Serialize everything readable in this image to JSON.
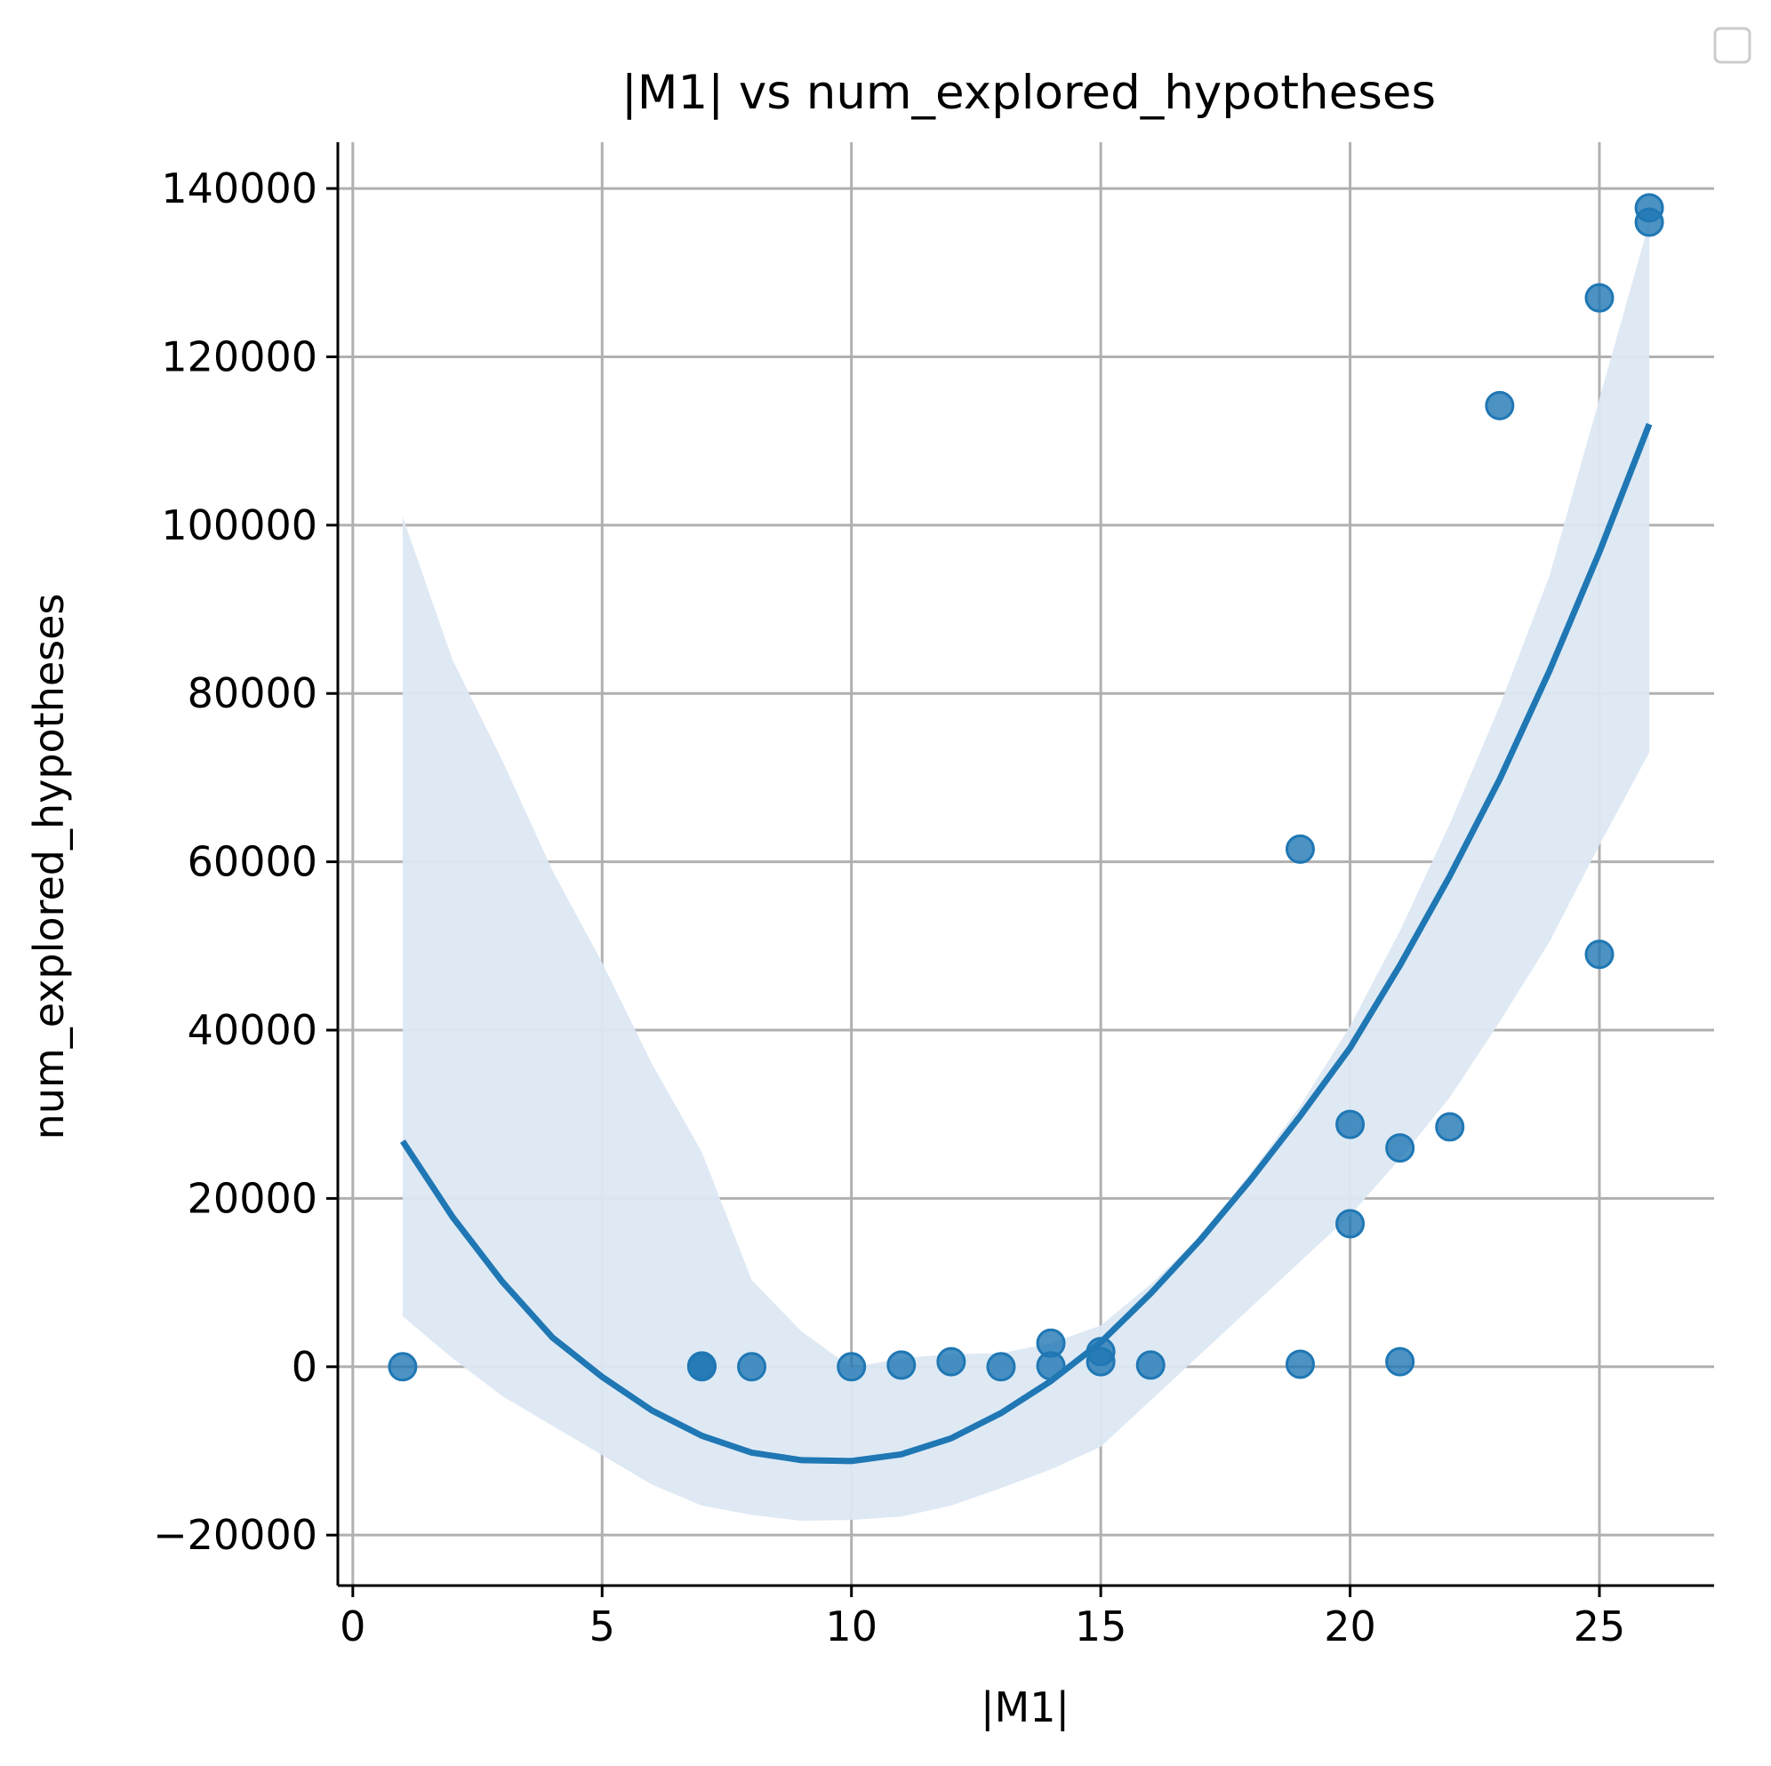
{
  "chart_data": {
    "type": "scatter",
    "title": "|M1| vs num_explored_hypotheses",
    "xlabel": "|M1|",
    "ylabel": "num_explored_hypotheses",
    "xlim": [
      -0.3,
      27.3
    ],
    "ylim": [
      -26000,
      145500
    ],
    "xticks": [
      0,
      5,
      10,
      15,
      20,
      25
    ],
    "yticks": [
      -20000,
      0,
      20000,
      40000,
      60000,
      80000,
      100000,
      120000,
      140000
    ],
    "ytick_labels": [
      "−20000",
      "0",
      "20000",
      "40000",
      "60000",
      "80000",
      "100000",
      "120000",
      "140000"
    ],
    "grid": true,
    "legend": "top-right, empty",
    "colors": {
      "points": "#1f77b4",
      "fit_line": "#1f77b4",
      "band": "#dce8f3",
      "grid": "#b0b0b0"
    },
    "points": [
      {
        "x": 1,
        "y": 0
      },
      {
        "x": 7,
        "y": 0
      },
      {
        "x": 7,
        "y": 100
      },
      {
        "x": 8,
        "y": 0
      },
      {
        "x": 10,
        "y": 0
      },
      {
        "x": 11,
        "y": 200
      },
      {
        "x": 12,
        "y": 600
      },
      {
        "x": 13,
        "y": 0
      },
      {
        "x": 14,
        "y": 2800
      },
      {
        "x": 14,
        "y": 100
      },
      {
        "x": 15,
        "y": 1800
      },
      {
        "x": 15,
        "y": 600
      },
      {
        "x": 16,
        "y": 200
      },
      {
        "x": 19,
        "y": 61500
      },
      {
        "x": 19,
        "y": 300
      },
      {
        "x": 20,
        "y": 28800
      },
      {
        "x": 20,
        "y": 17000
      },
      {
        "x": 21,
        "y": 26000
      },
      {
        "x": 21,
        "y": 600
      },
      {
        "x": 22,
        "y": 28500
      },
      {
        "x": 23,
        "y": 114200
      },
      {
        "x": 25,
        "y": 127000
      },
      {
        "x": 25,
        "y": 49000
      },
      {
        "x": 26,
        "y": 137700
      },
      {
        "x": 26,
        "y": 136000
      }
    ],
    "fit_curve": {
      "x": [
        1,
        2,
        3,
        4,
        5,
        6,
        7,
        8,
        9,
        10,
        11,
        12,
        13,
        14,
        15,
        16,
        17,
        18,
        19,
        20,
        21,
        22,
        23,
        24,
        25,
        26
      ],
      "y": [
        26800,
        17800,
        10100,
        3500,
        -1200,
        -5200,
        -8200,
        -10200,
        -11100,
        -11200,
        -10400,
        -8500,
        -5500,
        -1700,
        2900,
        8700,
        15100,
        22200,
        29800,
        37900,
        47700,
        58300,
        69800,
        82700,
        96800,
        112000
      ]
    },
    "confidence_band": {
      "x": [
        1,
        2,
        3,
        4,
        5,
        6,
        7,
        8,
        9,
        10,
        11,
        12,
        13,
        14,
        15,
        16,
        17,
        18,
        19,
        20,
        21,
        22,
        23,
        24,
        25,
        26
      ],
      "upper": [
        101000,
        84000,
        72000,
        59000,
        48000,
        36000,
        25500,
        10300,
        4200,
        -100,
        1000,
        1500,
        1600,
        2800,
        4900,
        9800,
        15500,
        23000,
        31000,
        40500,
        51800,
        64500,
        78500,
        94000,
        115000,
        136000
      ],
      "lower": [
        6000,
        1000,
        -3500,
        -7000,
        -10500,
        -14000,
        -16500,
        -17600,
        -18300,
        -18200,
        -17800,
        -16500,
        -14400,
        -12200,
        -9500,
        -4000,
        1500,
        7000,
        12500,
        18000,
        24700,
        32000,
        41000,
        50500,
        62000,
        73000
      ]
    }
  }
}
